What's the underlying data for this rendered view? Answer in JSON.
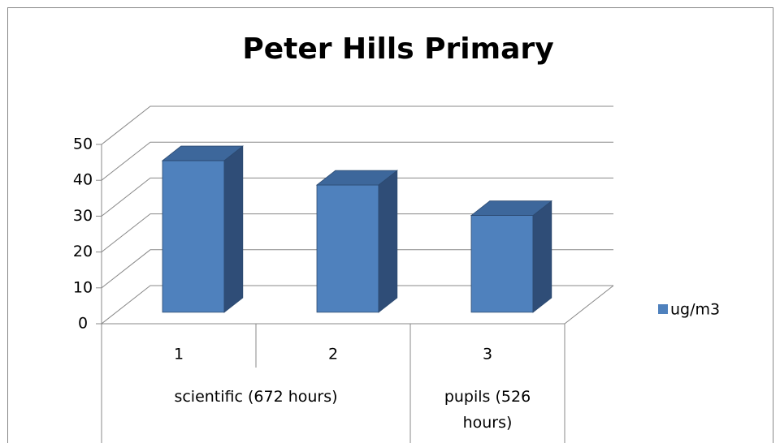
{
  "chart_data": {
    "type": "bar3d",
    "title": "Peter Hills Primary",
    "categories": [
      "1",
      "2",
      "3"
    ],
    "group_labels": [
      "scientific (672 hours)",
      "pupils (526 hours)"
    ],
    "series": [
      {
        "name": "ug/m3",
        "color": "#4f81bd",
        "values": [
          42.3,
          35.5,
          27
        ]
      }
    ],
    "ylim": [
      0,
      50
    ],
    "yticks": [
      0,
      10,
      20,
      30,
      40,
      50
    ],
    "grid": true,
    "legend": "right"
  }
}
